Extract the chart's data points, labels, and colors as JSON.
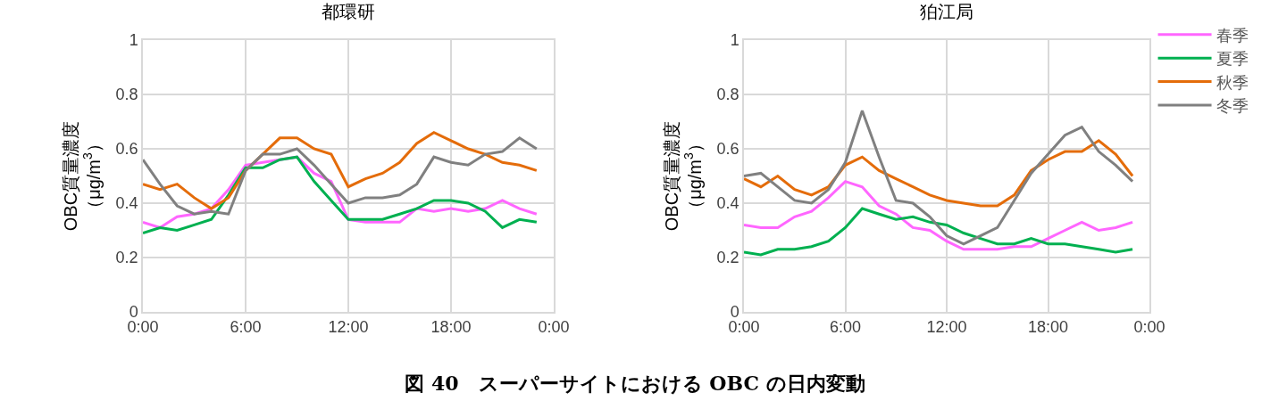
{
  "chart_data": [
    {
      "type": "line",
      "title": "都環研",
      "ylabel": "OBC質量濃度（μg/m$^{3}$）",
      "x": [
        0,
        1,
        2,
        3,
        4,
        5,
        6,
        7,
        8,
        9,
        10,
        11,
        12,
        13,
        14,
        15,
        16,
        17,
        18,
        19,
        20,
        21,
        22,
        23
      ],
      "xlim": [
        0,
        24
      ],
      "xticks": [
        {
          "value": 0,
          "label": "0:00"
        },
        {
          "value": 6,
          "label": "6:00"
        },
        {
          "value": 12,
          "label": "12:00"
        },
        {
          "value": 18,
          "label": "18:00"
        },
        {
          "value": 24,
          "label": "0:00"
        }
      ],
      "ylim": [
        0,
        1
      ],
      "yticks": [
        0,
        0.2,
        0.4,
        0.6,
        0.8,
        1
      ],
      "grid": true,
      "legend": false,
      "annotations": [
        "図 40　スーパーサイトにおける OBC の日内変動"
      ],
      "series": [
        {
          "color": "#ff66ff",
          "values": [
            0.33,
            0.31,
            0.35,
            0.36,
            0.38,
            0.45,
            0.54,
            0.55,
            0.56,
            0.57,
            0.51,
            0.48,
            0.34,
            0.33,
            0.33,
            0.33,
            0.38,
            0.37,
            0.38,
            0.37,
            0.38,
            0.41,
            0.38,
            0.36
          ]
        },
        {
          "color": "#00b050",
          "values": [
            0.29,
            0.31,
            0.3,
            0.32,
            0.34,
            0.43,
            0.53,
            0.53,
            0.56,
            0.57,
            0.48,
            0.41,
            0.34,
            0.34,
            0.34,
            0.36,
            0.38,
            0.41,
            0.41,
            0.4,
            0.37,
            0.31,
            0.34,
            0.33
          ]
        },
        {
          "color": "#e46c0a",
          "values": [
            0.47,
            0.45,
            0.47,
            0.42,
            0.38,
            0.42,
            0.52,
            0.58,
            0.64,
            0.64,
            0.6,
            0.58,
            0.46,
            0.49,
            0.51,
            0.55,
            0.62,
            0.66,
            0.63,
            0.6,
            0.58,
            0.55,
            0.54,
            0.52
          ]
        },
        {
          "color": "#808080",
          "values": [
            0.56,
            0.47,
            0.39,
            0.36,
            0.37,
            0.36,
            0.52,
            0.58,
            0.58,
            0.6,
            0.54,
            0.47,
            0.4,
            0.42,
            0.42,
            0.43,
            0.47,
            0.57,
            0.55,
            0.54,
            0.58,
            0.59,
            0.64,
            0.6
          ]
        }
      ]
    },
    {
      "type": "line",
      "title": "狛江局",
      "ylabel": "OBC質量濃度（μg/m$^{3}$）",
      "x": [
        0,
        1,
        2,
        3,
        4,
        5,
        6,
        7,
        8,
        9,
        10,
        11,
        12,
        13,
        14,
        15,
        16,
        17,
        18,
        19,
        20,
        21,
        22,
        23
      ],
      "xlim": [
        0,
        24
      ],
      "xticks": [
        {
          "value": 0,
          "label": "0:00"
        },
        {
          "value": 6,
          "label": "6:00"
        },
        {
          "value": 12,
          "label": "12:00"
        },
        {
          "value": 18,
          "label": "18:00"
        },
        {
          "value": 24,
          "label": "0:00"
        }
      ],
      "ylim": [
        0,
        1
      ],
      "yticks": [
        0,
        0.2,
        0.4,
        0.6,
        0.8,
        1
      ],
      "grid": true,
      "legend": "top right",
      "series": [
        {
          "name": "春季",
          "color": "#ff66ff",
          "values": [
            0.32,
            0.31,
            0.31,
            0.35,
            0.37,
            0.42,
            0.48,
            0.46,
            0.39,
            0.36,
            0.31,
            0.3,
            0.26,
            0.23,
            0.23,
            0.23,
            0.24,
            0.24,
            0.27,
            0.3,
            0.33,
            0.3,
            0.31,
            0.33
          ]
        },
        {
          "name": "夏季",
          "color": "#00b050",
          "values": [
            0.22,
            0.21,
            0.23,
            0.23,
            0.24,
            0.26,
            0.31,
            0.38,
            0.36,
            0.34,
            0.35,
            0.33,
            0.32,
            0.29,
            0.27,
            0.25,
            0.25,
            0.27,
            0.25,
            0.25,
            0.24,
            0.23,
            0.22,
            0.23
          ]
        },
        {
          "name": "秋季",
          "color": "#e46c0a",
          "values": [
            0.49,
            0.46,
            0.5,
            0.45,
            0.43,
            0.46,
            0.54,
            0.57,
            0.52,
            0.49,
            0.46,
            0.43,
            0.41,
            0.4,
            0.39,
            0.39,
            0.43,
            0.52,
            0.56,
            0.59,
            0.59,
            0.63,
            0.58,
            0.5
          ]
        },
        {
          "name": "冬季",
          "color": "#808080",
          "values": [
            0.5,
            0.51,
            0.46,
            0.41,
            0.4,
            0.45,
            0.55,
            0.74,
            0.57,
            0.41,
            0.4,
            0.35,
            0.28,
            0.25,
            0.28,
            0.31,
            0.41,
            0.51,
            0.58,
            0.65,
            0.68,
            0.59,
            0.54,
            0.48
          ]
        }
      ]
    }
  ]
}
